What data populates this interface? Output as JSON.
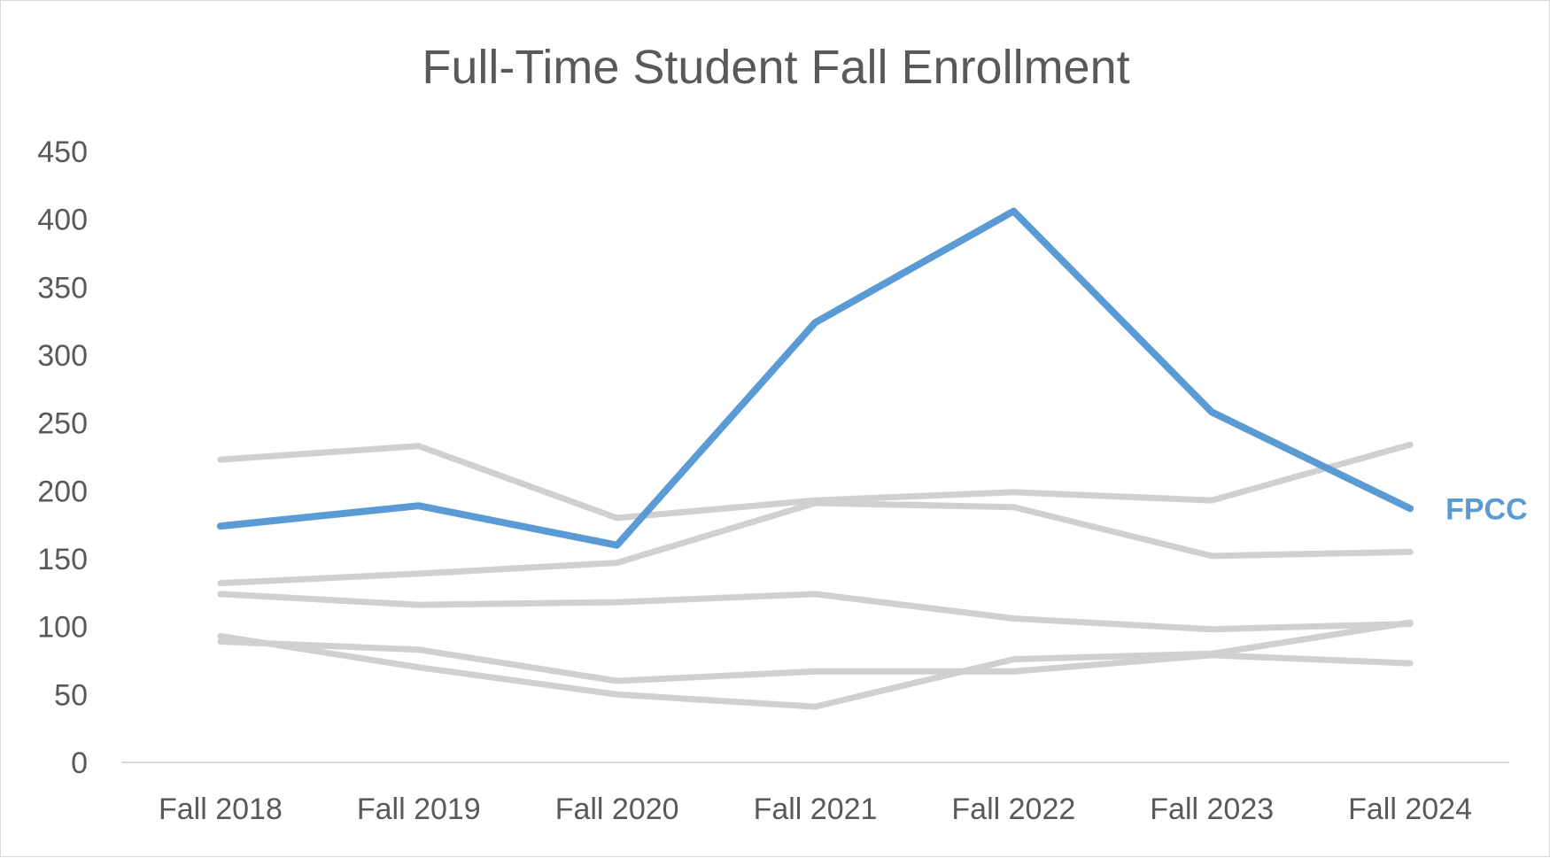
{
  "chart_data": {
    "type": "line",
    "title": "Full-Time Student Fall Enrollment",
    "xlabel": "",
    "ylabel": "",
    "categories": [
      "Fall 2018",
      "Fall 2019",
      "Fall 2020",
      "Fall 2021",
      "Fall 2022",
      "Fall 2023",
      "Fall 2024"
    ],
    "ylim": [
      0,
      450
    ],
    "yticks": [
      0,
      50,
      100,
      150,
      200,
      250,
      300,
      350,
      400,
      450
    ],
    "grid": false,
    "legend": "none",
    "highlight_color": "#5b9bd5",
    "context_color": "#d0d0d0",
    "series": [
      {
        "values": [
          223,
          233,
          180,
          193,
          199,
          193,
          234
        ],
        "highlight": false
      },
      {
        "values": [
          132,
          139,
          147,
          191,
          188,
          152,
          155
        ],
        "highlight": false
      },
      {
        "values": [
          124,
          116,
          118,
          124,
          106,
          98,
          102
        ],
        "highlight": false
      },
      {
        "values": [
          93,
          70,
          50,
          41,
          76,
          80,
          103
        ],
        "highlight": false
      },
      {
        "values": [
          89,
          83,
          60,
          67,
          67,
          79,
          73
        ],
        "highlight": false
      },
      {
        "name": "FPCC",
        "values": [
          174,
          189,
          160,
          324,
          406,
          258,
          187
        ],
        "highlight": true
      }
    ]
  }
}
